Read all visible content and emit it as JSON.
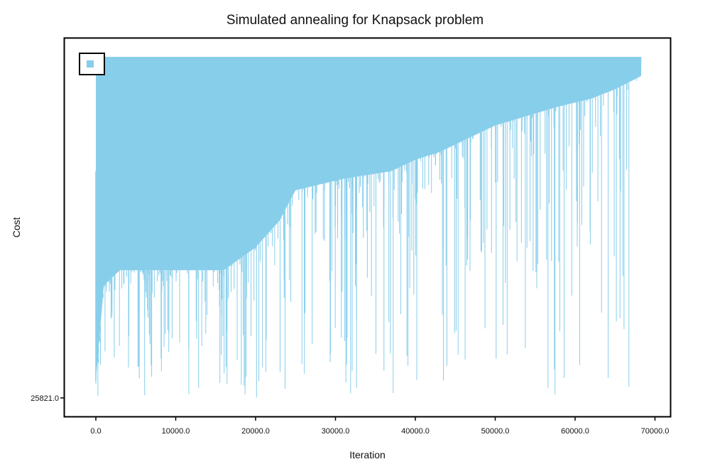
{
  "chart_data": {
    "type": "line",
    "title": "Simulated annealing for Knapsack problem",
    "xlabel": "Iteration",
    "ylabel": "Cost",
    "x_ticks": [
      "0.0",
      "10000.0",
      "20000.0",
      "30000.0",
      "40000.0",
      "50000.0",
      "60000.0",
      "70000.0"
    ],
    "x_tick_values": [
      0,
      10000,
      20000,
      30000,
      40000,
      50000,
      60000,
      70000
    ],
    "y_ticks": [
      "25821.0"
    ],
    "y_tick_values": [
      25821
    ],
    "xlim": [
      -4000,
      72000
    ],
    "ylim": [
      25821,
      26000
    ],
    "grid": false,
    "legend": {
      "placement": "top-left",
      "entries": [
        ""
      ]
    },
    "series": [
      {
        "color": "#87CEEB",
        "x_range": [
          0,
          68300
        ],
        "upper_value": 26000,
        "lower_envelope": {
          "x": [
            0,
            1000,
            3000,
            5000,
            8000,
            12000,
            16000,
            20000,
            23000,
            25000,
            28000,
            31000,
            34000,
            37000,
            40000,
            43000,
            46000,
            50000,
            54000,
            58000,
            62000,
            65000,
            68300
          ],
          "y": [
            25830,
            25880,
            25888,
            25888,
            25888,
            25888,
            25888,
            25900,
            25914,
            25930,
            25933,
            25936,
            25938,
            25940,
            25946,
            25950,
            25956,
            25964,
            25969,
            25974,
            25978,
            25983,
            25990
          ]
        }
      }
    ]
  }
}
